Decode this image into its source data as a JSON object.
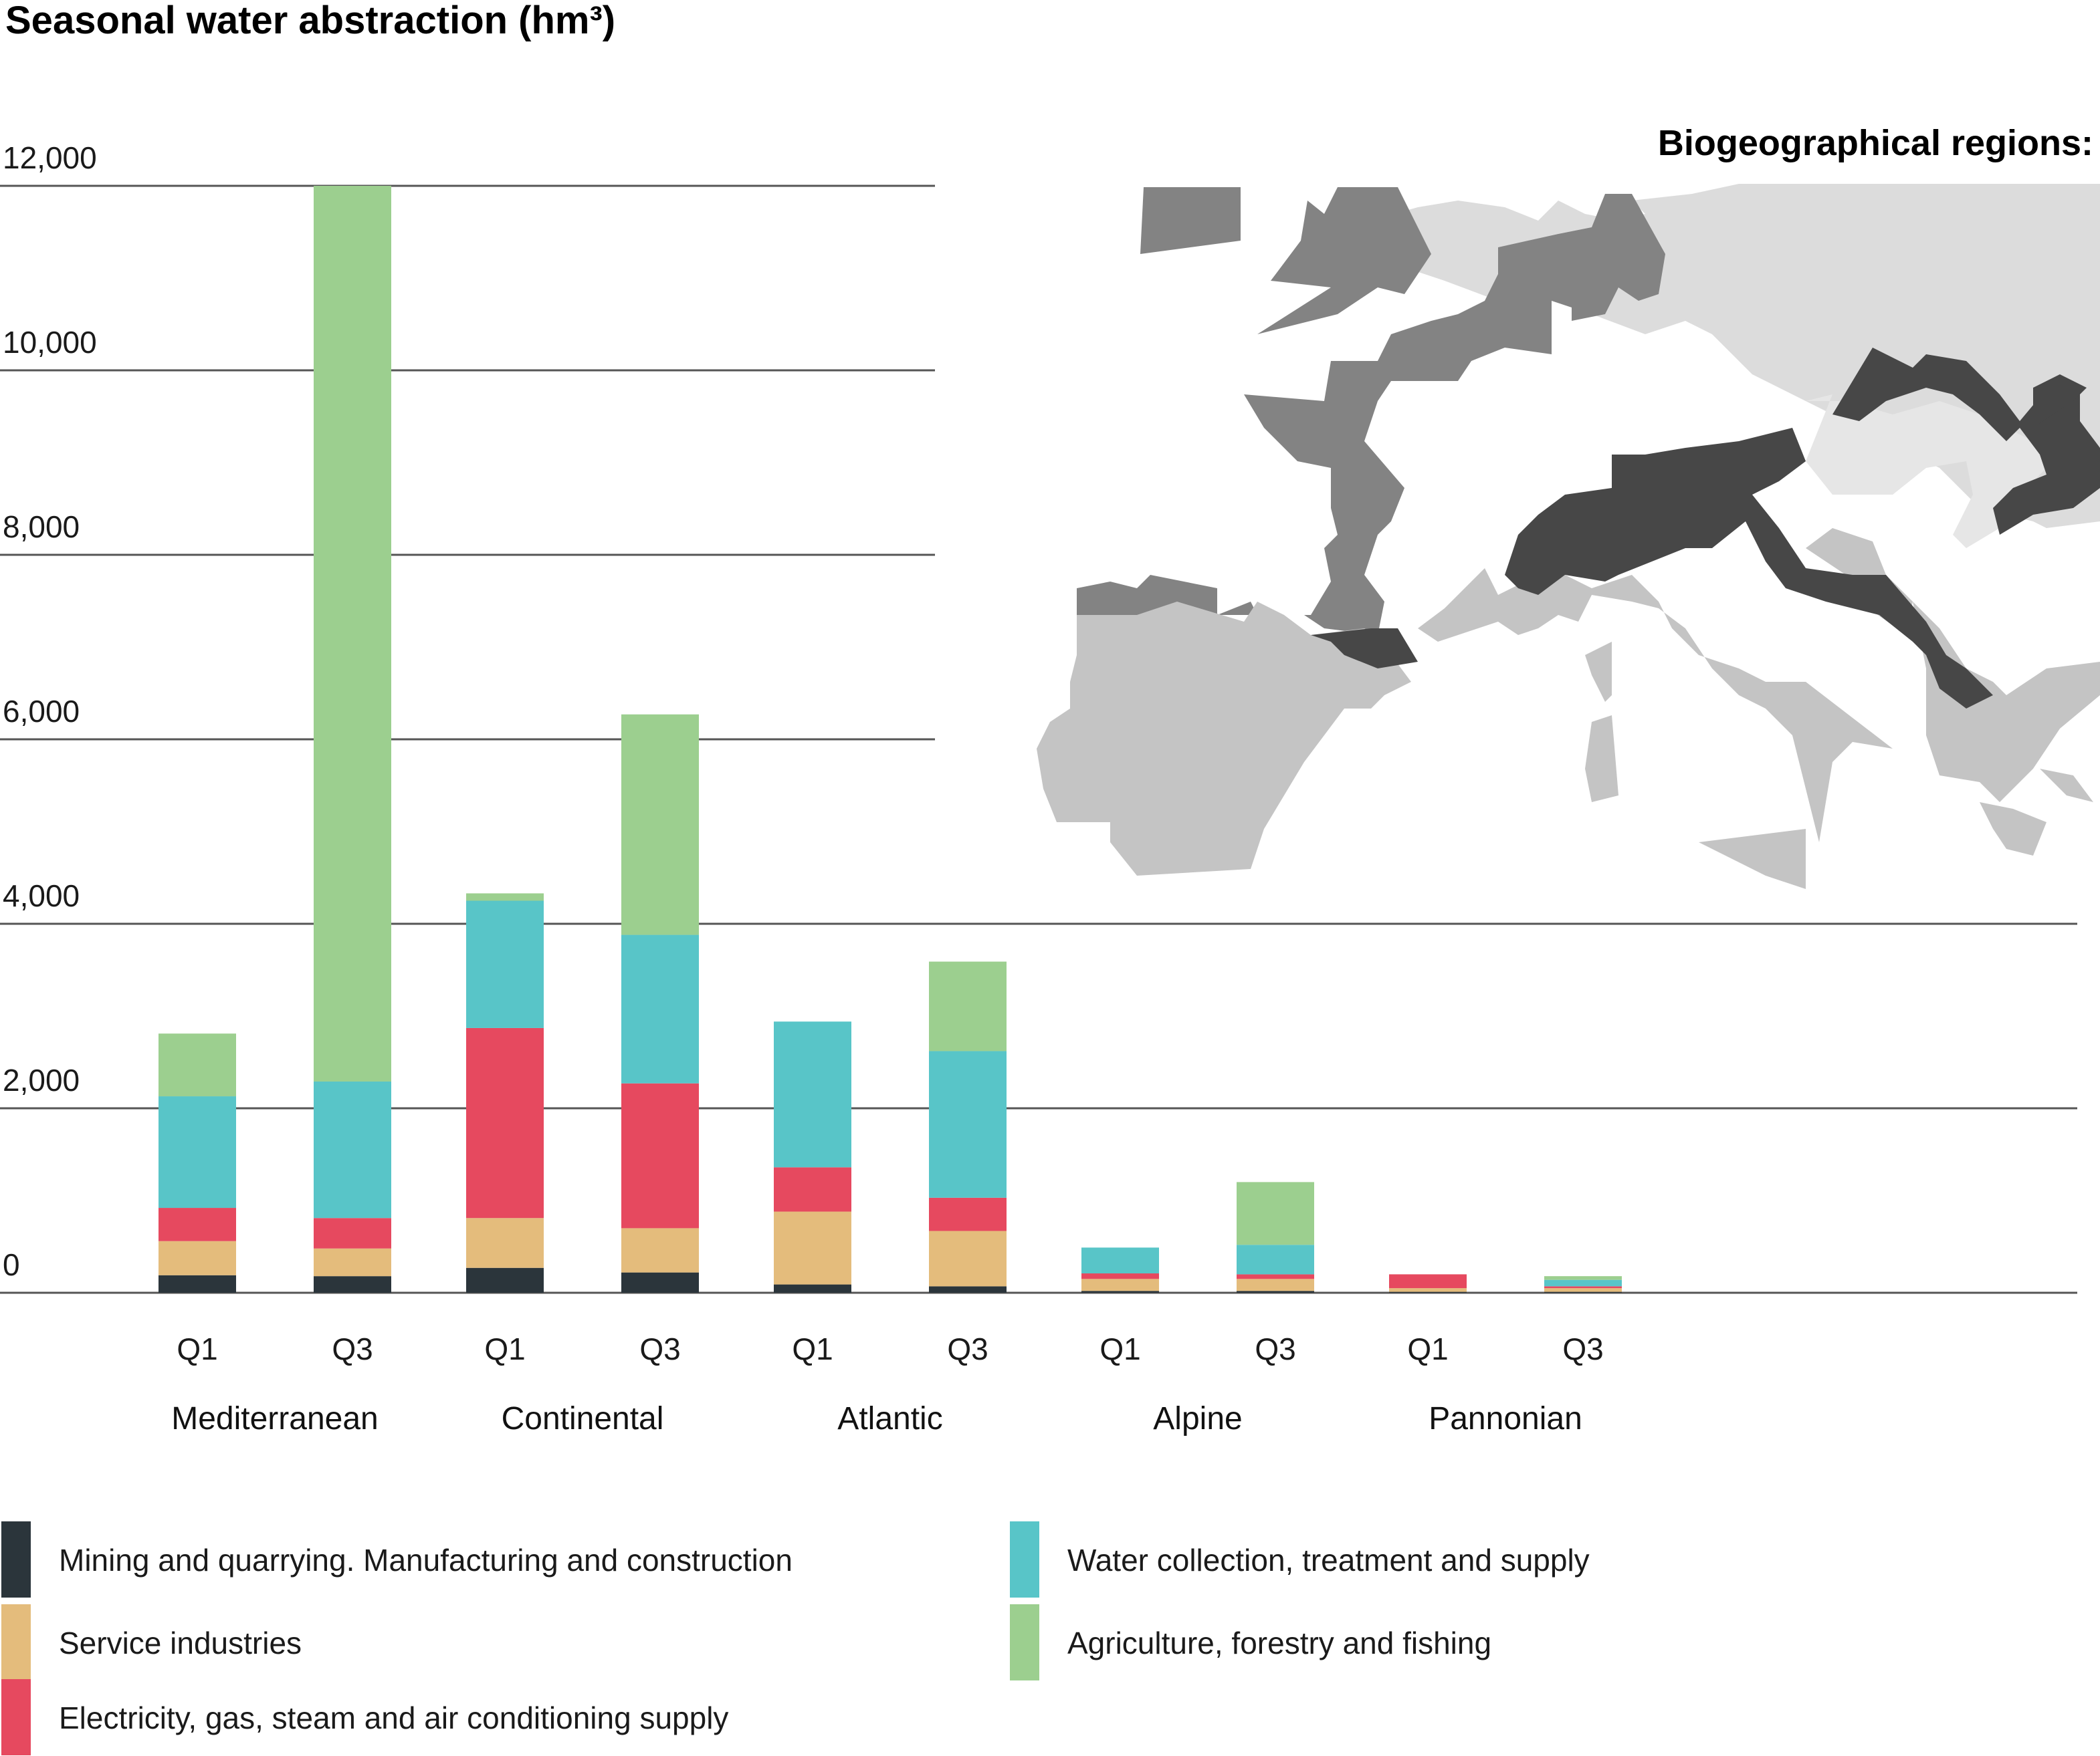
{
  "chart_data": {
    "type": "bar",
    "stacked": true,
    "title": "Seasonal water abstraction (hm³)",
    "map_title": "Biogeographical regions:",
    "xlabel": "",
    "ylabel": "",
    "ylim": [
      0,
      12000
    ],
    "yticks": [
      0,
      2000,
      4000,
      6000,
      8000,
      10000,
      12000
    ],
    "ytick_labels": [
      "0",
      "2,000",
      "4,000",
      "6,000",
      "8,000",
      "10,000",
      "12,000"
    ],
    "grid": true,
    "legend_position": "bottom",
    "groups": [
      {
        "name": "Mediterranean",
        "subcategories": [
          "Q1",
          "Q3"
        ]
      },
      {
        "name": "Continental",
        "subcategories": [
          "Q1",
          "Q3"
        ]
      },
      {
        "name": "Atlantic",
        "subcategories": [
          "Q1",
          "Q3"
        ]
      },
      {
        "name": "Alpine",
        "subcategories": [
          "Q1",
          "Q3"
        ]
      },
      {
        "name": "Pannonian",
        "subcategories": [
          "Q1",
          "Q3"
        ]
      }
    ],
    "categories": [
      "Mediterranean Q1",
      "Mediterranean Q3",
      "Continental Q1",
      "Continental Q3",
      "Atlantic Q1",
      "Atlantic Q3",
      "Alpine Q1",
      "Alpine Q3",
      "Pannonian Q1",
      "Pannonian Q3"
    ],
    "series": [
      {
        "name": "Mining and quarrying. Manufacturing and construction",
        "color": "#2b353b",
        "values": [
          190,
          180,
          270,
          220,
          90,
          70,
          20,
          20,
          10,
          10
        ]
      },
      {
        "name": "Service industries",
        "color": "#e4bc7c",
        "values": [
          370,
          300,
          540,
          480,
          790,
          600,
          130,
          130,
          40,
          40
        ]
      },
      {
        "name": "Electricity, gas, steam and air conditioning supply",
        "color": "#e6495f",
        "values": [
          360,
          330,
          2060,
          1570,
          480,
          360,
          60,
          50,
          150,
          20
        ]
      },
      {
        "name": "Water collection, treatment and supply",
        "color": "#58c5c8",
        "values": [
          1210,
          1480,
          1380,
          1610,
          1580,
          1590,
          280,
          320,
          0,
          70
        ]
      },
      {
        "name": "Agriculture, forestry and fishing",
        "color": "#9ccf8f",
        "values": [
          680,
          9710,
          80,
          2390,
          0,
          970,
          0,
          680,
          0,
          40
        ]
      }
    ]
  }
}
